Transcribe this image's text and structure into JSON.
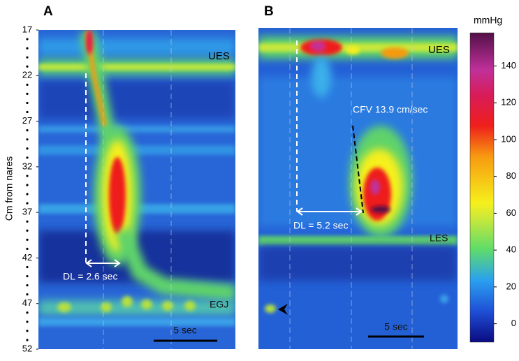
{
  "panels": [
    {
      "label": "A",
      "annotations": [
        "UES",
        "EGJ",
        "DL = 2.6 sec",
        "5 sec"
      ]
    },
    {
      "label": "B",
      "annotations": [
        "UES",
        "LES",
        "CFV 13.9 cm/sec",
        "DL = 5.2 sec",
        "5 sec"
      ]
    }
  ],
  "y_axis": {
    "label": "Cm from nares",
    "lim": [
      17,
      52
    ],
    "ticks": [
      17,
      22,
      27,
      32,
      37,
      42,
      47,
      52
    ]
  },
  "colorbar": {
    "unit": "mmHg",
    "lim": [
      -10,
      158
    ],
    "ticks": [
      0,
      20,
      40,
      60,
      80,
      100,
      120,
      140
    ]
  }
}
